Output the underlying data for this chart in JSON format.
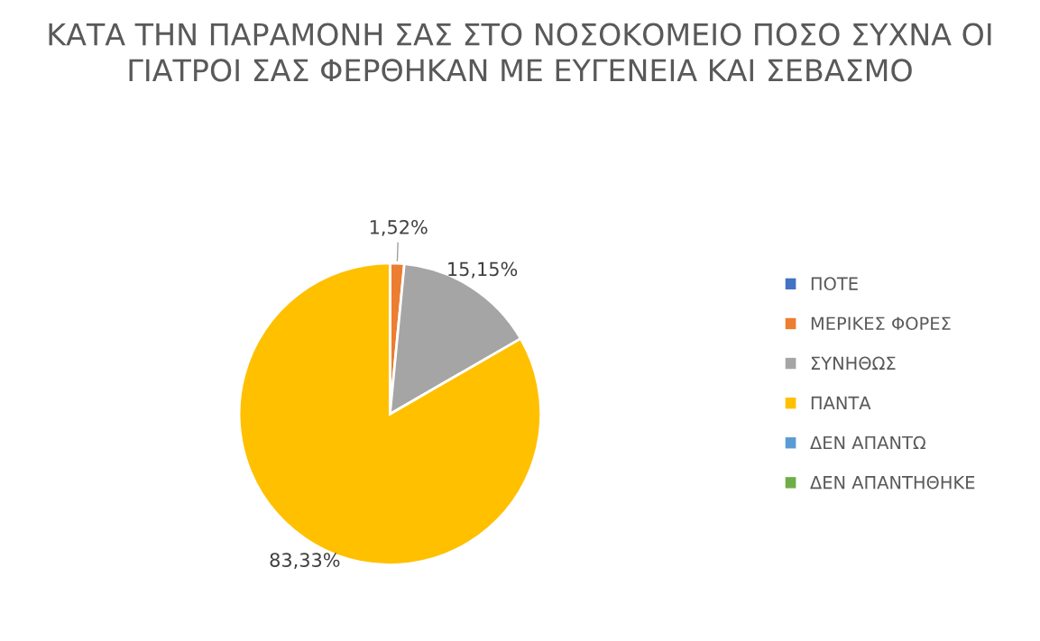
{
  "chart_data": {
    "type": "pie",
    "title": "ΚΑΤΑ ΤΗΝ ΠΑΡΑΜΟΝΗ ΣΑΣ ΣΤΟ ΝΟΣΟΚΟΜΕΙΟ ΠΟΣΟ ΣΥΧΝΑ ΟΙ ΓΙΑΤΡΟΙ ΣΑΣ ΦΕΡΘΗΚΑΝ ΜΕ ΕΥΓΕΝΕΙΑ ΚΑΙ ΣΕΒΑΣΜΟ",
    "categories": [
      "ΠΟΤΕ",
      "ΜΕΡΙΚΕΣ ΦΟΡΕΣ",
      "ΣΥΝΗΘΩΣ",
      "ΠΑΝΤΑ",
      "ΔΕΝ ΑΠΑΝΤΩ",
      "ΔΕΝ ΑΠΑΝΤΗΘΗΚΕ"
    ],
    "values": [
      0,
      1.52,
      15.15,
      83.33,
      0,
      0
    ],
    "value_labels": [
      null,
      "1,52%",
      "15,15%",
      "83,33%",
      null,
      null
    ],
    "colors": [
      "#4472c4",
      "#ed7d31",
      "#a5a5a5",
      "#ffc000",
      "#5b9bd5",
      "#70ad47"
    ],
    "legend": "right"
  }
}
